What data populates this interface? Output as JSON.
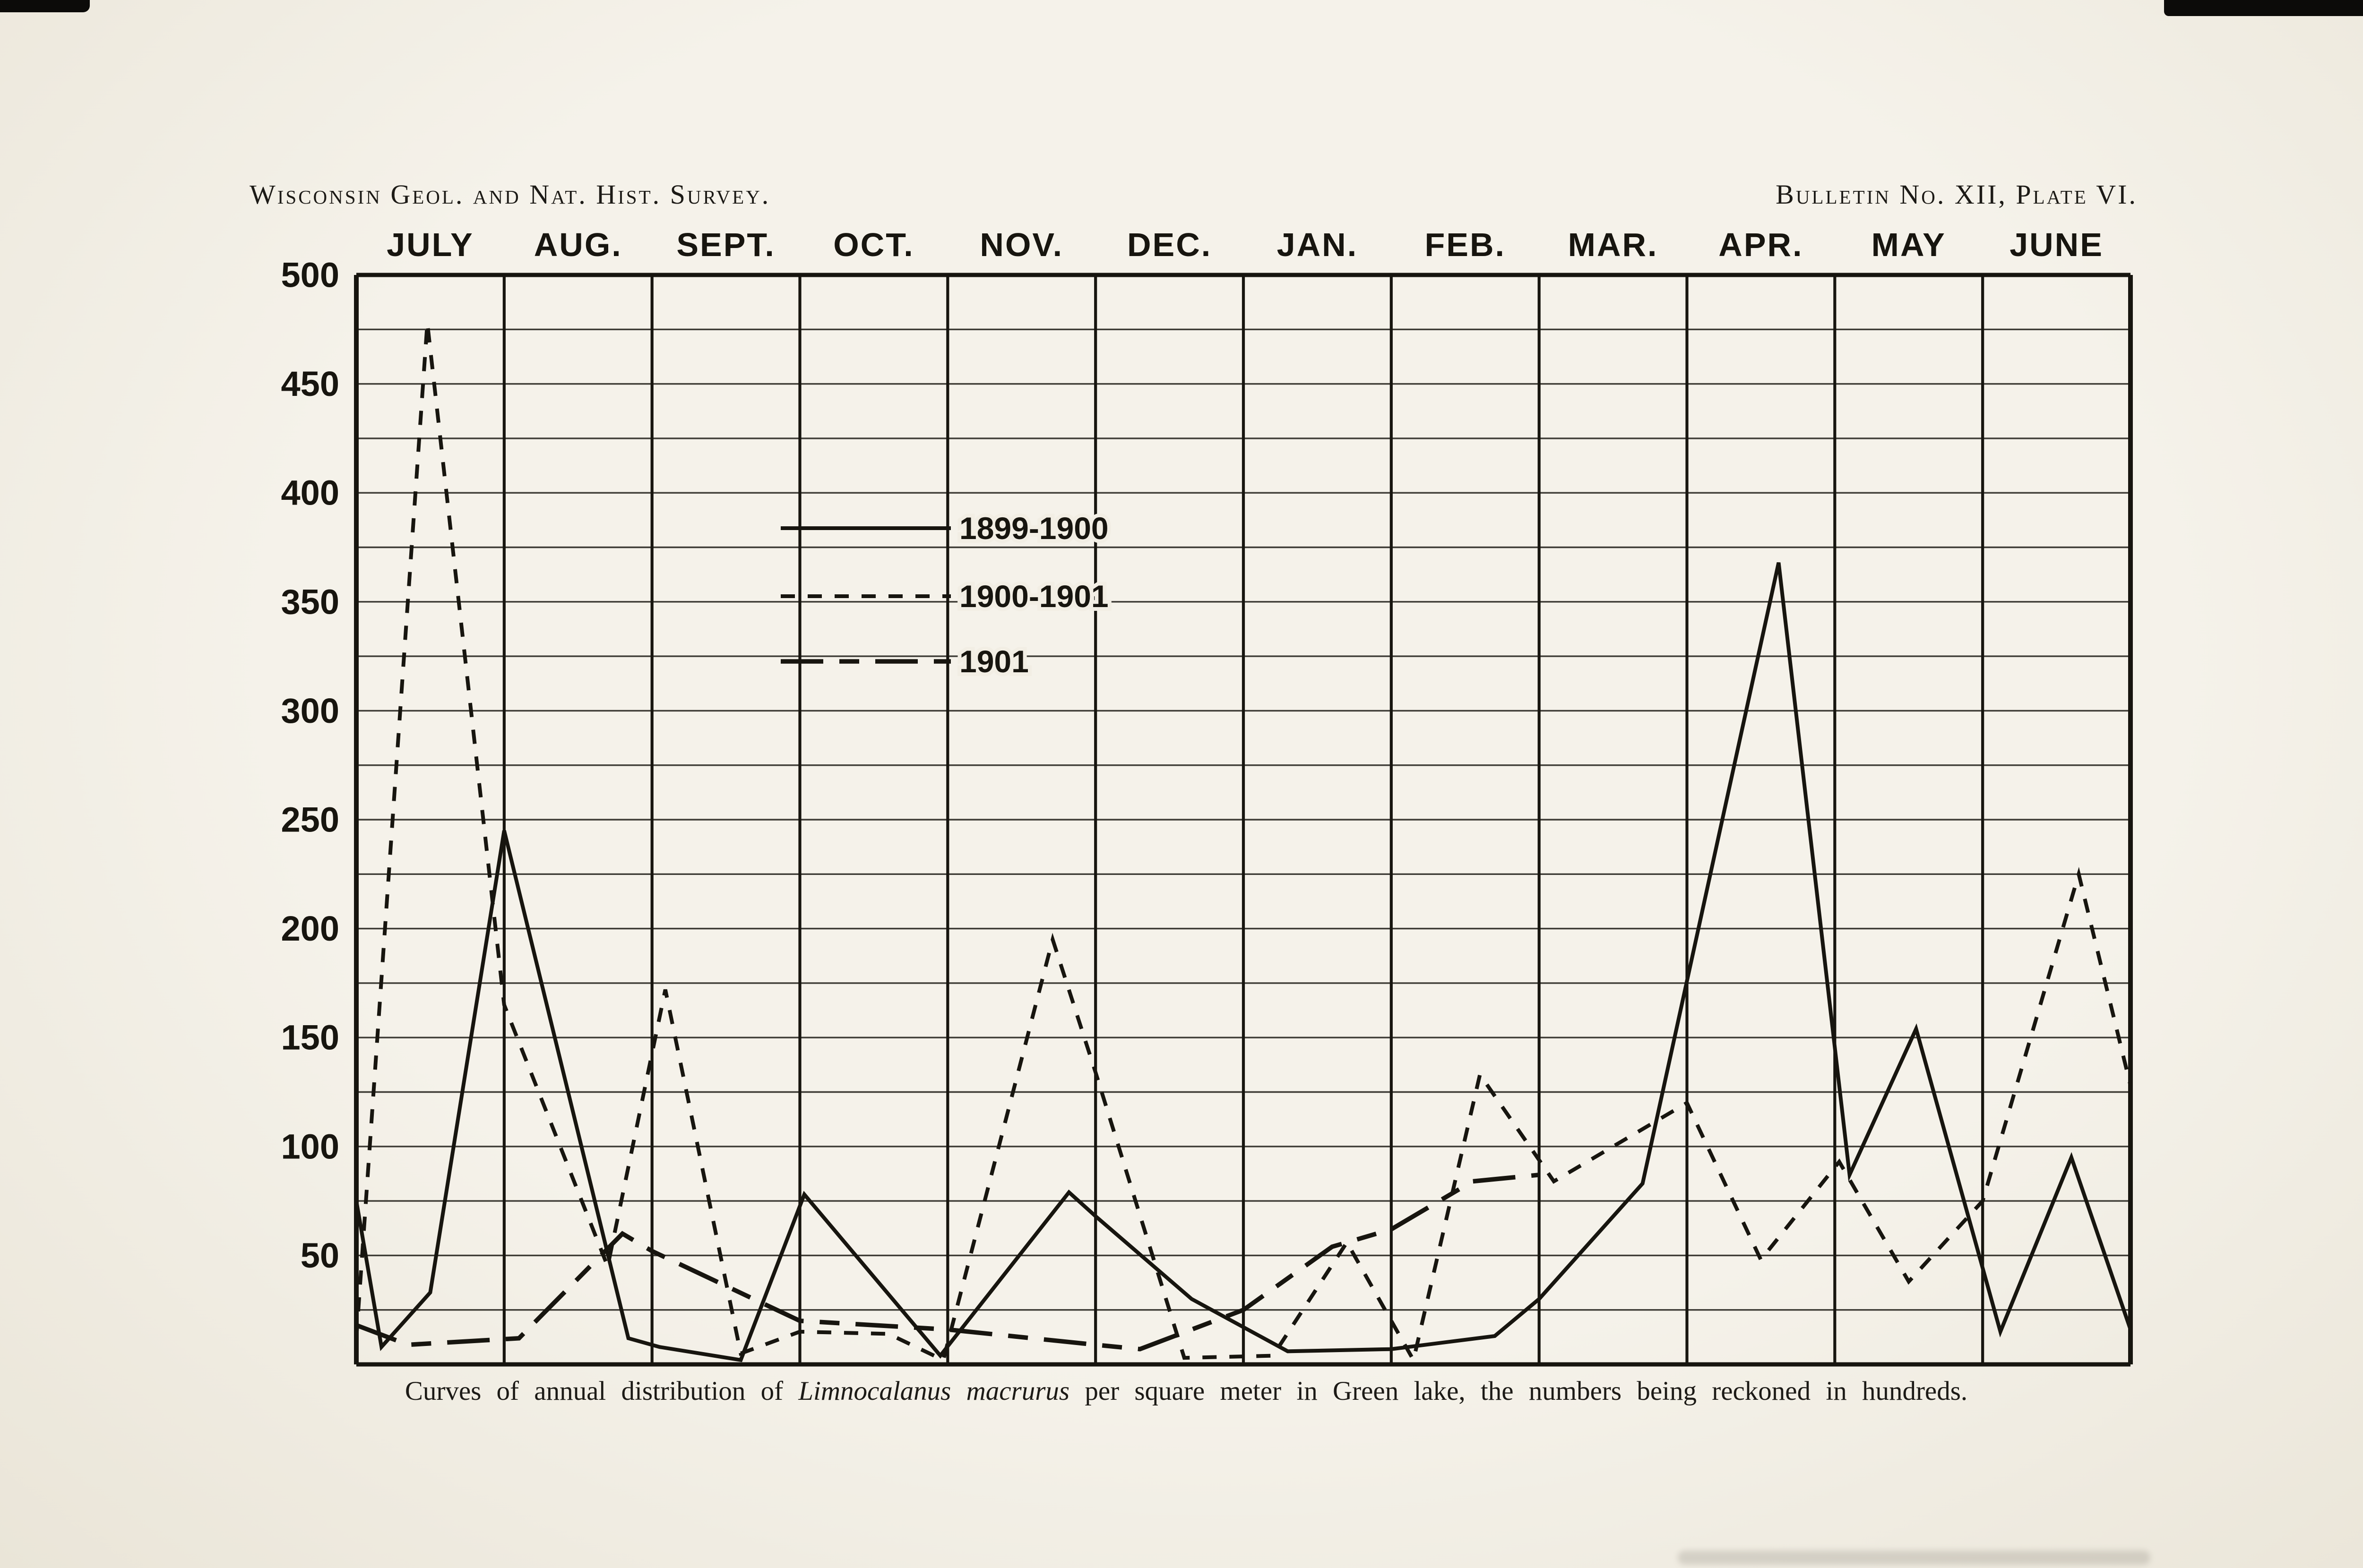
{
  "page": {
    "paper_color": "#f2eee4",
    "ink_color": "#17150f"
  },
  "header": {
    "left": "Wisconsin Geol. and Nat. Hist. Survey.",
    "right": "Bulletin No. XII, Plate VI."
  },
  "caption": {
    "prefix": "Curves of annual distribution of ",
    "species": "Limnocalanus macrurus",
    "suffix": " per square meter in Green lake, the numbers being reckoned in hundreds."
  },
  "chart_data": {
    "type": "line",
    "title": "",
    "xlabel": "",
    "ylabel": "",
    "categories": [
      "JULY",
      "AUG.",
      "SEPT.",
      "OCT.",
      "NOV.",
      "DEC.",
      "JAN.",
      "FEB.",
      "MAR.",
      "APR.",
      "MAY",
      "JUNE"
    ],
    "x_unit": "month position, 0 = July 1 ... 12 = June 30",
    "ylim": [
      0,
      500
    ],
    "ytick_minor_step": 25,
    "ytick_labels": [
      50,
      100,
      150,
      200,
      250,
      300,
      350,
      400,
      450,
      500
    ],
    "grid": "on",
    "legend_position": "inside, upper-middle-left",
    "series": [
      {
        "name": "1899-1900",
        "style": "solid",
        "points": [
          [
            0,
            75
          ],
          [
            0.17,
            8
          ],
          [
            0.5,
            33
          ],
          [
            1,
            245
          ],
          [
            1.84,
            12
          ],
          [
            2.05,
            8
          ],
          [
            2.6,
            2
          ],
          [
            3.03,
            78
          ],
          [
            3.95,
            4
          ],
          [
            4.82,
            79
          ],
          [
            5,
            68
          ],
          [
            5.65,
            30
          ],
          [
            6.3,
            6
          ],
          [
            7,
            7
          ],
          [
            7.7,
            13
          ],
          [
            8,
            30
          ],
          [
            8.7,
            83
          ],
          [
            9.62,
            368
          ],
          [
            10.1,
            87
          ],
          [
            10.55,
            154
          ],
          [
            11.12,
            15
          ],
          [
            11.6,
            95
          ],
          [
            12,
            16
          ]
        ]
      },
      {
        "name": "1900-1901",
        "style": "short-dash",
        "points": [
          [
            0,
            12
          ],
          [
            0.48,
            478
          ],
          [
            1,
            165
          ],
          [
            1.7,
            45
          ],
          [
            2.09,
            172
          ],
          [
            2.6,
            5
          ],
          [
            3,
            15
          ],
          [
            3.6,
            14
          ],
          [
            3.97,
            2
          ],
          [
            4.71,
            195
          ],
          [
            5,
            134
          ],
          [
            5.6,
            3
          ],
          [
            6.2,
            4
          ],
          [
            6.7,
            56
          ],
          [
            7.15,
            2
          ],
          [
            7.6,
            133
          ],
          [
            8.1,
            84
          ],
          [
            9,
            120
          ],
          [
            9.5,
            48
          ],
          [
            10.03,
            93
          ],
          [
            10.5,
            38
          ],
          [
            11,
            75
          ],
          [
            11.65,
            225
          ],
          [
            12,
            128
          ]
        ]
      },
      {
        "name": "1901",
        "style": "long-dash",
        "points": [
          [
            0,
            18
          ],
          [
            0.35,
            9
          ],
          [
            1.1,
            12
          ],
          [
            1.8,
            60
          ],
          [
            2,
            52
          ],
          [
            3,
            20
          ],
          [
            4,
            16
          ],
          [
            5,
            9
          ],
          [
            5.3,
            7
          ],
          [
            6,
            25
          ],
          [
            6.6,
            54
          ],
          [
            7,
            62
          ],
          [
            7.55,
            84
          ],
          [
            8,
            87
          ]
        ]
      }
    ]
  }
}
